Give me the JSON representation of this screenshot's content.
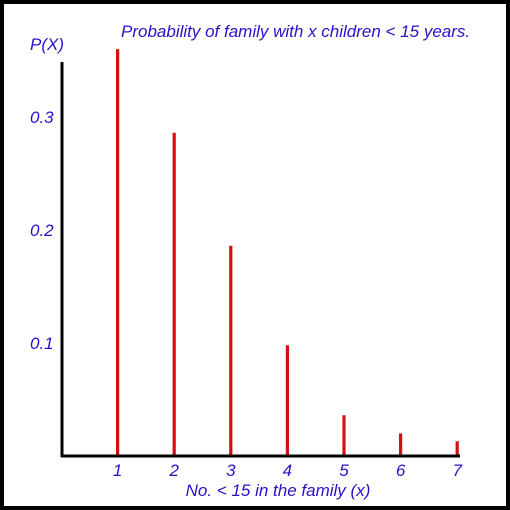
{
  "chart_data": {
    "type": "bar",
    "title": "Probability of family with x children < 15 years.",
    "xlabel": "No. < 15 in the family (x)",
    "ylabel": "P(X)",
    "categories": [
      "1",
      "2",
      "3",
      "4",
      "5",
      "6",
      "7"
    ],
    "x": [
      1,
      2,
      3,
      4,
      5,
      6,
      7
    ],
    "values": [
      0.36,
      0.286,
      0.186,
      0.098,
      0.036,
      0.02,
      0.013
    ],
    "yticks": [
      "0.1",
      "0.2",
      "0.3"
    ],
    "ylim": [
      0,
      0.36
    ],
    "xlim": [
      0,
      7
    ],
    "grid": false,
    "legend": "none"
  },
  "colors": {
    "bar": "#d21010",
    "text": "#2a10c8",
    "axis": "#000000",
    "border": "#000000"
  }
}
